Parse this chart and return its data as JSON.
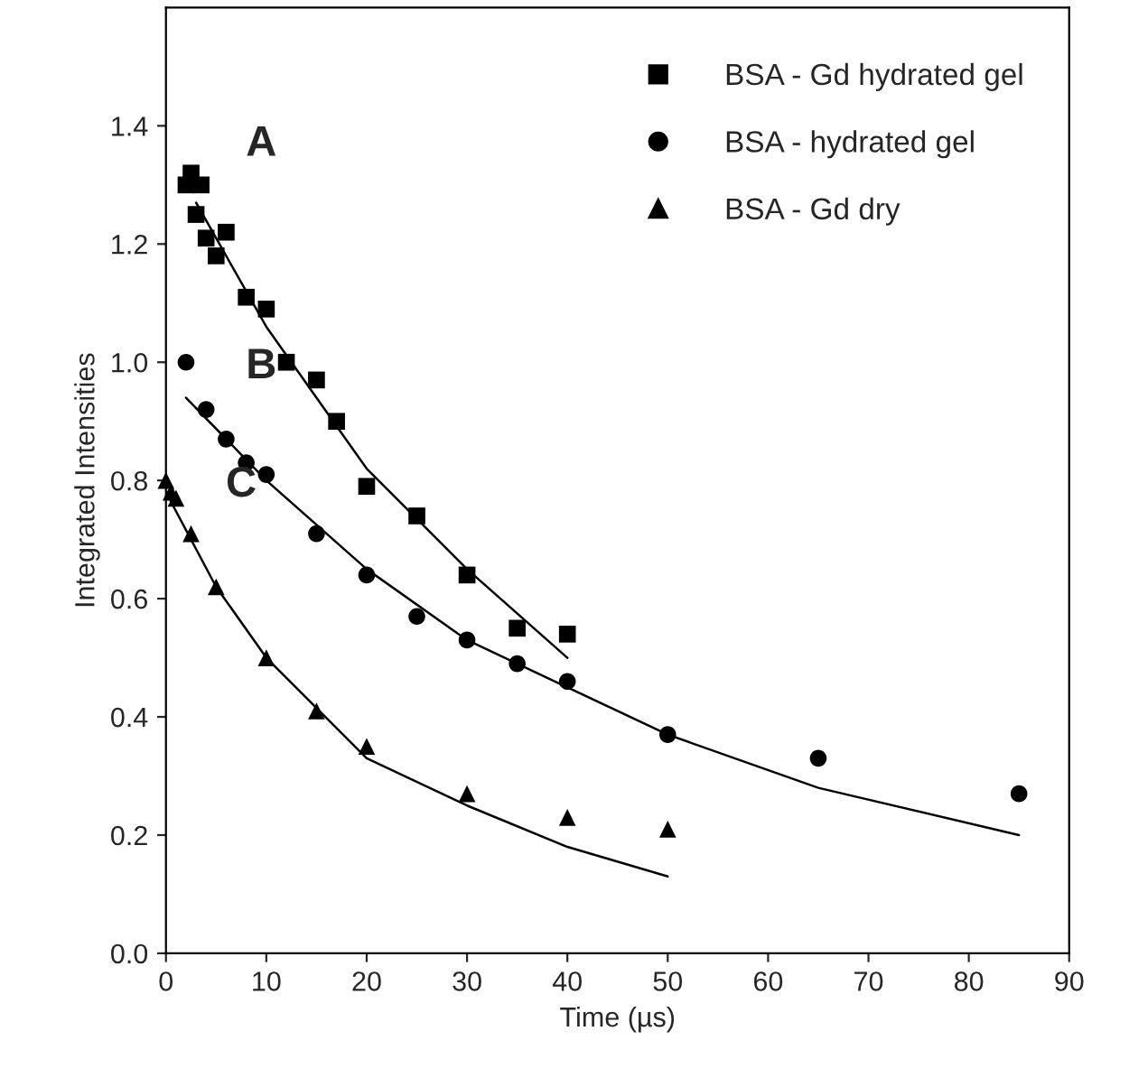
{
  "chart_data": {
    "type": "scatter",
    "xlabel": "Time (µs)",
    "ylabel": "Integrated Intensities",
    "xlim": [
      0,
      90
    ],
    "ylim": [
      0,
      1.6
    ],
    "xticks": [
      0,
      10,
      20,
      30,
      40,
      50,
      60,
      70,
      80,
      90
    ],
    "yticks": [
      {
        "value": 0,
        "label": "0.0"
      },
      {
        "value": 0.2,
        "label": "0.2"
      },
      {
        "value": 0.4,
        "label": "0.4"
      },
      {
        "value": 0.6,
        "label": "0.6"
      },
      {
        "value": 0.8,
        "label": "0.8"
      },
      {
        "value": 1.0,
        "label": "1.0"
      },
      {
        "value": 1.2,
        "label": "1.2"
      },
      {
        "value": 1.4,
        "label": "1.4"
      }
    ],
    "grid": false,
    "legend": "top right",
    "series": [
      {
        "name": "BSA - Gd hydrated gel",
        "color": "#000000",
        "marker": "square",
        "x": [
          2,
          2.5,
          3,
          3.5,
          4,
          5,
          6,
          8,
          10,
          12,
          15,
          17,
          20,
          25,
          30,
          35,
          40
        ],
        "values": [
          1.3,
          1.32,
          1.25,
          1.3,
          1.21,
          1.18,
          1.22,
          1.11,
          1.09,
          1.0,
          0.97,
          0.9,
          0.79,
          0.74,
          0.64,
          0.55,
          0.54
        ]
      },
      {
        "name": "BSA - hydrated gel",
        "color": "#000000",
        "marker": "circle",
        "x": [
          2,
          4,
          6,
          8,
          10,
          15,
          20,
          25,
          30,
          35,
          40,
          50,
          65,
          85
        ],
        "values": [
          1.0,
          0.92,
          0.87,
          0.83,
          0.81,
          0.71,
          0.64,
          0.57,
          0.53,
          0.49,
          0.46,
          0.37,
          0.33,
          0.27
        ]
      },
      {
        "name": "BSA - Gd dry",
        "color": "#000000",
        "marker": "triangle",
        "x": [
          0,
          0.5,
          1,
          2.5,
          5,
          10,
          15,
          20,
          30,
          40,
          50
        ],
        "values": [
          0.8,
          0.78,
          0.77,
          0.71,
          0.62,
          0.5,
          0.41,
          0.35,
          0.27,
          0.23,
          0.21
        ]
      },
      {
        "type": "line",
        "color": "#000000",
        "line_style": "solid",
        "x": [
          3,
          10,
          20,
          30,
          40
        ],
        "values": [
          1.27,
          1.06,
          0.82,
          0.65,
          0.5
        ]
      },
      {
        "type": "line",
        "color": "#000000",
        "line_style": "solid",
        "x": [
          2,
          10,
          20,
          30,
          40,
          50,
          65,
          85
        ],
        "values": [
          0.94,
          0.8,
          0.65,
          0.53,
          0.45,
          0.37,
          0.28,
          0.2
        ]
      },
      {
        "type": "line",
        "color": "#000000",
        "line_style": "solid",
        "x": [
          0,
          5,
          10,
          20,
          30,
          40,
          50
        ],
        "values": [
          0.78,
          0.62,
          0.5,
          0.33,
          0.25,
          0.18,
          0.13
        ]
      }
    ],
    "annotations": [
      "A",
      "B",
      "C"
    ]
  }
}
